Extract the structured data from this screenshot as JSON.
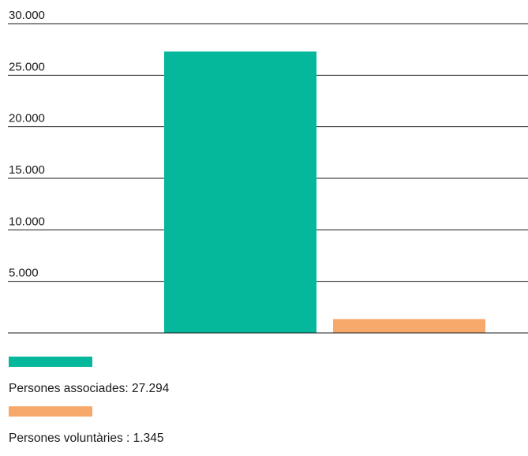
{
  "chart_data": {
    "type": "bar",
    "categories": [
      "Persones associades",
      "Persones voluntàries"
    ],
    "values": [
      27294,
      1345
    ],
    "colors": [
      "#05b89b",
      "#f7a86b"
    ],
    "ylim": [
      0,
      30000
    ],
    "yticks": [
      5000,
      10000,
      15000,
      20000,
      25000,
      30000
    ],
    "ytick_labels": [
      "5.000",
      "10.000",
      "15.000",
      "20.000",
      "25.000",
      "30.000"
    ],
    "grid": true,
    "legend_placement": "bottom-left"
  },
  "legend": [
    {
      "label": "Persones associades: 27.294",
      "color": "#05b89b"
    },
    {
      "label": "Persones voluntàries : 1.345",
      "color": "#f7a86b"
    }
  ]
}
